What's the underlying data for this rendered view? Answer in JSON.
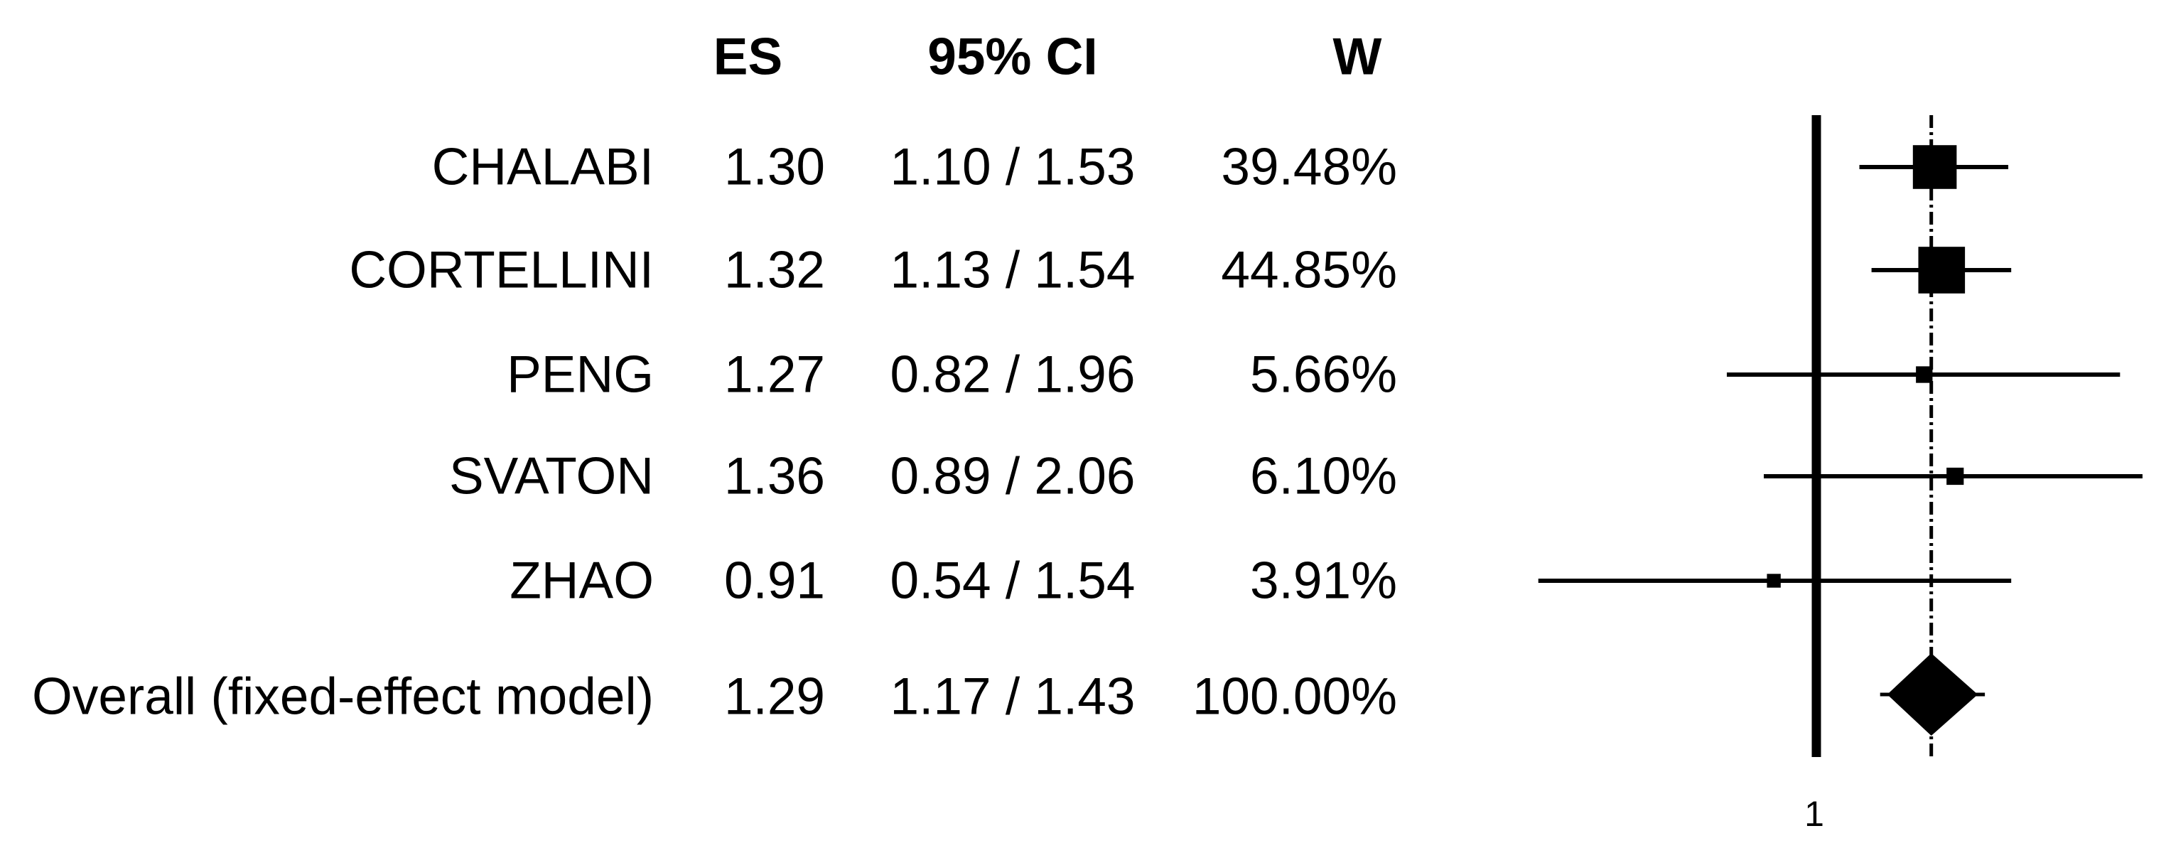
{
  "table": {
    "columns": {
      "es": "ES",
      "ci": "95% CI",
      "w": "W"
    },
    "rows": [
      {
        "label": "CHALABI",
        "es": "1.30",
        "ci": "1.10 / 1.53",
        "w": "39.48%"
      },
      {
        "label": "CORTELLINI",
        "es": "1.32",
        "ci": "1.13 / 1.54",
        "w": "44.85%"
      },
      {
        "label": "PENG",
        "es": "1.27",
        "ci": "0.82 / 1.96",
        "w": "5.66%"
      },
      {
        "label": "SVATON",
        "es": "1.36",
        "ci": "0.89 / 2.06",
        "w": "6.10%"
      },
      {
        "label": "ZHAO",
        "es": "0.91",
        "ci": "0.54 / 1.54",
        "w": "3.91%"
      },
      {
        "label": "Overall (fixed-effect model)",
        "es": "1.29",
        "ci": "1.17 / 1.43",
        "w": "100.00%"
      }
    ]
  },
  "plot": {
    "tick_label": "1"
  },
  "chart_data": {
    "type": "scatter",
    "subtype": "forest_plot",
    "effect_measure": "ES",
    "model": "fixed-effect",
    "x_scale": "log",
    "reference_value": 1,
    "x_tick_labels": [
      "1"
    ],
    "legend": "none",
    "grid": false,
    "studies": [
      {
        "name": "CHALABI",
        "es": 1.3,
        "ci_low": 1.1,
        "ci_high": 1.53,
        "weight_pct": 39.48
      },
      {
        "name": "CORTELLINI",
        "es": 1.32,
        "ci_low": 1.13,
        "ci_high": 1.54,
        "weight_pct": 44.85
      },
      {
        "name": "PENG",
        "es": 1.27,
        "ci_low": 0.82,
        "ci_high": 1.96,
        "weight_pct": 5.66
      },
      {
        "name": "SVATON",
        "es": 1.36,
        "ci_low": 0.89,
        "ci_high": 2.06,
        "weight_pct": 6.1
      },
      {
        "name": "ZHAO",
        "es": 0.91,
        "ci_low": 0.54,
        "ci_high": 1.54,
        "weight_pct": 3.91
      }
    ],
    "overall": {
      "name": "Overall (fixed-effect model)",
      "es": 1.29,
      "ci_low": 1.17,
      "ci_high": 1.43,
      "weight_pct": 100.0
    },
    "colors": {
      "foreground": "#000000",
      "background": "#ffffff"
    }
  }
}
